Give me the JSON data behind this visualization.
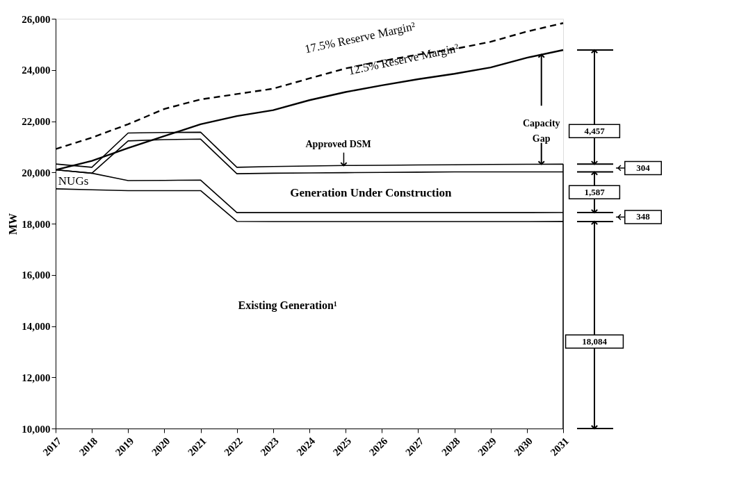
{
  "chart_data": {
    "type": "line",
    "ylabel": "MW",
    "x": [
      2017,
      2018,
      2019,
      2020,
      2021,
      2022,
      2023,
      2024,
      2025,
      2026,
      2027,
      2028,
      2029,
      2030,
      2031
    ],
    "series": [
      {
        "color": "#000000",
        "values": [
          19360,
          19320,
          19290,
          19290,
          19290,
          18090,
          18080,
          18080,
          18080,
          18080,
          18080,
          18080,
          18080,
          18080,
          18084
        ]
      },
      {
        "color": "#000000",
        "values": [
          20100,
          19970,
          19680,
          19690,
          19700,
          18430,
          18430,
          18430,
          18430,
          18430,
          18430,
          18430,
          18430,
          18430,
          18432
        ]
      },
      {
        "color": "#000000",
        "values": [
          20100,
          19970,
          21230,
          21280,
          21300,
          19950,
          19970,
          19980,
          19990,
          20000,
          20010,
          20020,
          20020,
          20020,
          20019
        ]
      },
      {
        "color": "#000000",
        "values": [
          20330,
          20200,
          21540,
          21560,
          21570,
          20200,
          20230,
          20250,
          20270,
          20280,
          20290,
          20300,
          20310,
          20320,
          20323
        ]
      },
      {
        "color": "#000000",
        "values": [
          20100,
          20450,
          20950,
          21420,
          21880,
          22200,
          22430,
          22820,
          23140,
          23400,
          23640,
          23850,
          24100,
          24480,
          24780
        ]
      },
      {
        "color": "#000000",
        "line_style": "dashed",
        "values": [
          20910,
          21360,
          21880,
          22480,
          22850,
          23060,
          23270,
          23670,
          24060,
          24350,
          24600,
          24820,
          25100,
          25500,
          25830
        ]
      }
    ],
    "xlim": [
      2017,
      2031
    ],
    "ylim": [
      10000,
      26000
    ],
    "xticks": [
      2017,
      2018,
      2019,
      2020,
      2021,
      2022,
      2023,
      2024,
      2025,
      2026,
      2027,
      2028,
      2029,
      2030,
      2031
    ],
    "yticks": [
      {
        "value": 10000,
        "label": "10,000"
      },
      {
        "value": 12000,
        "label": "12,000"
      },
      {
        "value": 14000,
        "label": "14,000"
      },
      {
        "value": 16000,
        "label": "16,000"
      },
      {
        "value": 18000,
        "label": "18,000"
      },
      {
        "value": 20000,
        "label": "20,000"
      },
      {
        "value": 22000,
        "label": "22,000"
      },
      {
        "value": 24000,
        "label": "24,000"
      },
      {
        "value": 26000,
        "label": "26,000"
      }
    ],
    "grid": false,
    "line_style": "solid",
    "marker": "none",
    "annotations": [
      "17.5% Reserve Margin²",
      {
        "text": "12.5% Reserve Margin²",
        "x": 2026.6,
        "y": 24400
      },
      "Approved DSM",
      "NUGs",
      "Generation Under Construction",
      "Existing Generation¹",
      {
        "text": "Capacity Gap",
        "x": 2030.4,
        "y": 24600
      },
      "4,457",
      "304",
      "1,587",
      "348",
      "18,084"
    ]
  }
}
